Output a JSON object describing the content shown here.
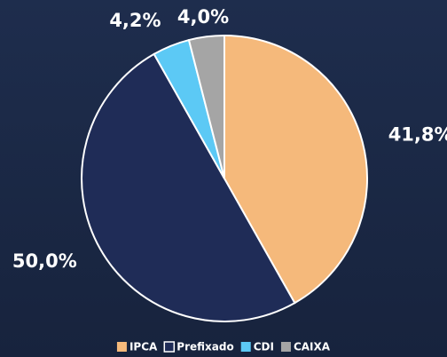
{
  "chart_data": {
    "type": "pie",
    "categories": [
      "IPCA",
      "Prefixado",
      "CDI",
      "CAIXA"
    ],
    "values": [
      41.8,
      50.0,
      4.2,
      4.0
    ],
    "value_labels": [
      "41,8%",
      "50,0%",
      "4,2%",
      "4,0%"
    ],
    "colors": [
      "#f5b97b",
      "#1f2c57",
      "#5cc9f5",
      "#a5a5a5"
    ],
    "legend": "bottom"
  }
}
